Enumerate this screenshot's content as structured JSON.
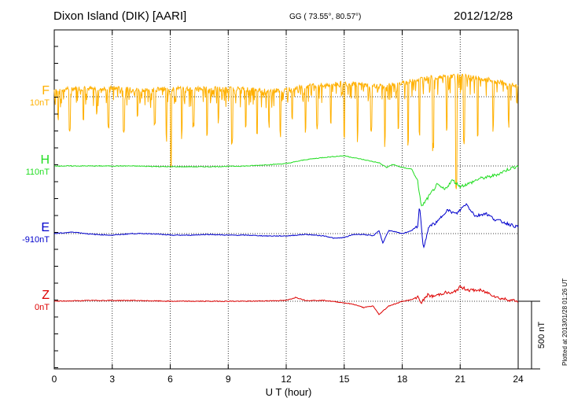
{
  "header": {
    "station": "Dixon Island (DIK)  [AARI]",
    "coords": "GG ( 73.55°,  80.57°)",
    "date": "2012/12/28"
  },
  "footer_note": "Plotted at 2013/01/28 01:26 UT",
  "chart_data": {
    "type": "line",
    "title": "Dixon Island (DIK)  [AARI]",
    "xlabel": "U T (hour)",
    "xlim": [
      0,
      24
    ],
    "x_ticks": [
      "0",
      "3",
      "6",
      "9",
      "12",
      "15",
      "18",
      "21",
      "24"
    ],
    "grid": "vertical dotted lines every 3 hours",
    "scale_bar": "500 nT",
    "traces": [
      {
        "name": "F",
        "baseline_label": "10nT",
        "color": "#ffb000",
        "style": "noisy",
        "points": [
          [
            0,
            12
          ],
          [
            1,
            14
          ],
          [
            2,
            13
          ],
          [
            3,
            14
          ],
          [
            4,
            12
          ],
          [
            5,
            12
          ],
          [
            6,
            13
          ],
          [
            7,
            14
          ],
          [
            8,
            13
          ],
          [
            9,
            13
          ],
          [
            10,
            13
          ],
          [
            11,
            10
          ],
          [
            12,
            12
          ],
          [
            13,
            16
          ],
          [
            14,
            18
          ],
          [
            15,
            20
          ],
          [
            16,
            18
          ],
          [
            17,
            16
          ],
          [
            18,
            20
          ],
          [
            19,
            26
          ],
          [
            20,
            28
          ],
          [
            21,
            30
          ],
          [
            22,
            26
          ],
          [
            23,
            22
          ],
          [
            24,
            16
          ]
        ],
        "dips": [
          [
            0.2,
            -30
          ],
          [
            0.8,
            -45
          ],
          [
            1.5,
            -35
          ],
          [
            2.2,
            -25
          ],
          [
            2.8,
            -40
          ],
          [
            3.6,
            -50
          ],
          [
            4.3,
            -30
          ],
          [
            5.2,
            -45
          ],
          [
            5.8,
            -60
          ],
          [
            6.05,
            -120
          ],
          [
            6.6,
            -55
          ],
          [
            7.2,
            -40
          ],
          [
            7.9,
            -50
          ],
          [
            8.5,
            -35
          ],
          [
            9.2,
            -60
          ],
          [
            9.9,
            -45
          ],
          [
            10.5,
            -50
          ],
          [
            11.1,
            -40
          ],
          [
            11.7,
            -55
          ],
          [
            12.3,
            -35
          ],
          [
            13,
            -50
          ],
          [
            13.6,
            -45
          ],
          [
            14.3,
            -40
          ],
          [
            15,
            -55
          ],
          [
            15.7,
            -60
          ],
          [
            16.4,
            -50
          ],
          [
            17.1,
            -65
          ],
          [
            17.8,
            -55
          ],
          [
            18.3,
            -70
          ],
          [
            18.9,
            -60
          ],
          [
            19.6,
            -80
          ],
          [
            20.3,
            -50
          ],
          [
            20.8,
            -135
          ],
          [
            21.2,
            -70
          ],
          [
            21.9,
            -55
          ],
          [
            22.7,
            -45
          ],
          [
            23.5,
            -40
          ]
        ]
      },
      {
        "name": "H",
        "baseline_label": "110nT",
        "color": "#22dd22",
        "style": "smooth",
        "points": [
          [
            0,
            0
          ],
          [
            2,
            0
          ],
          [
            4,
            0
          ],
          [
            6,
            -1
          ],
          [
            8,
            -1
          ],
          [
            10,
            0
          ],
          [
            12,
            3
          ],
          [
            13,
            8
          ],
          [
            14,
            11
          ],
          [
            15,
            13
          ],
          [
            16,
            8
          ],
          [
            16.8,
            4
          ],
          [
            17.2,
            -2
          ],
          [
            17.5,
            2
          ],
          [
            18,
            -2
          ],
          [
            18.5,
            -4
          ],
          [
            18.8,
            -20
          ],
          [
            19,
            -52
          ],
          [
            19.4,
            -38
          ],
          [
            19.8,
            -24
          ],
          [
            20.2,
            -30
          ],
          [
            20.6,
            -18
          ],
          [
            21,
            -26
          ],
          [
            21.5,
            -22
          ],
          [
            22,
            -16
          ],
          [
            22.5,
            -14
          ],
          [
            23,
            -10
          ],
          [
            23.5,
            -4
          ],
          [
            24,
            0
          ]
        ]
      },
      {
        "name": "E",
        "baseline_label": "-910nT",
        "color": "#0000cc",
        "style": "smooth",
        "points": [
          [
            0,
            0
          ],
          [
            1,
            2
          ],
          [
            2,
            -1
          ],
          [
            3,
            -2
          ],
          [
            4,
            0
          ],
          [
            5,
            0
          ],
          [
            6,
            -2
          ],
          [
            7,
            -2
          ],
          [
            8,
            -1
          ],
          [
            9,
            -2
          ],
          [
            10,
            -2
          ],
          [
            11,
            -3
          ],
          [
            12,
            -3
          ],
          [
            13,
            -1
          ],
          [
            14,
            -3
          ],
          [
            14.5,
            -6
          ],
          [
            15,
            -5
          ],
          [
            15.5,
            -1
          ],
          [
            16,
            -1
          ],
          [
            16.5,
            -3
          ],
          [
            16.8,
            4
          ],
          [
            17,
            -12
          ],
          [
            17.3,
            4
          ],
          [
            18,
            0
          ],
          [
            18.5,
            4
          ],
          [
            18.8,
            10
          ],
          [
            18.9,
            35
          ],
          [
            19.1,
            -20
          ],
          [
            19.4,
            10
          ],
          [
            19.8,
            14
          ],
          [
            20.3,
            30
          ],
          [
            20.8,
            25
          ],
          [
            21.3,
            38
          ],
          [
            21.8,
            22
          ],
          [
            22.3,
            26
          ],
          [
            22.8,
            18
          ],
          [
            23.3,
            14
          ],
          [
            24,
            8
          ]
        ]
      },
      {
        "name": "Z",
        "baseline_label": "0nT",
        "color": "#dd0000",
        "style": "smooth",
        "points": [
          [
            0,
            0
          ],
          [
            2,
            1
          ],
          [
            4,
            1
          ],
          [
            6,
            0
          ],
          [
            8,
            0
          ],
          [
            10,
            0
          ],
          [
            12,
            1
          ],
          [
            12.5,
            5
          ],
          [
            13,
            1
          ],
          [
            14,
            1
          ],
          [
            15,
            -2
          ],
          [
            15.5,
            -4
          ],
          [
            16,
            -8
          ],
          [
            16.5,
            -6
          ],
          [
            16.8,
            -17
          ],
          [
            17.3,
            -6
          ],
          [
            17.8,
            -2
          ],
          [
            18,
            0
          ],
          [
            18.5,
            2
          ],
          [
            18.8,
            6
          ],
          [
            19,
            -2
          ],
          [
            19.3,
            8
          ],
          [
            19.6,
            6
          ],
          [
            20.2,
            11
          ],
          [
            20.6,
            10
          ],
          [
            21,
            18
          ],
          [
            21.5,
            14
          ],
          [
            22,
            14
          ],
          [
            22.5,
            10
          ],
          [
            23,
            4
          ],
          [
            23.5,
            2
          ],
          [
            24,
            0
          ]
        ]
      }
    ]
  }
}
